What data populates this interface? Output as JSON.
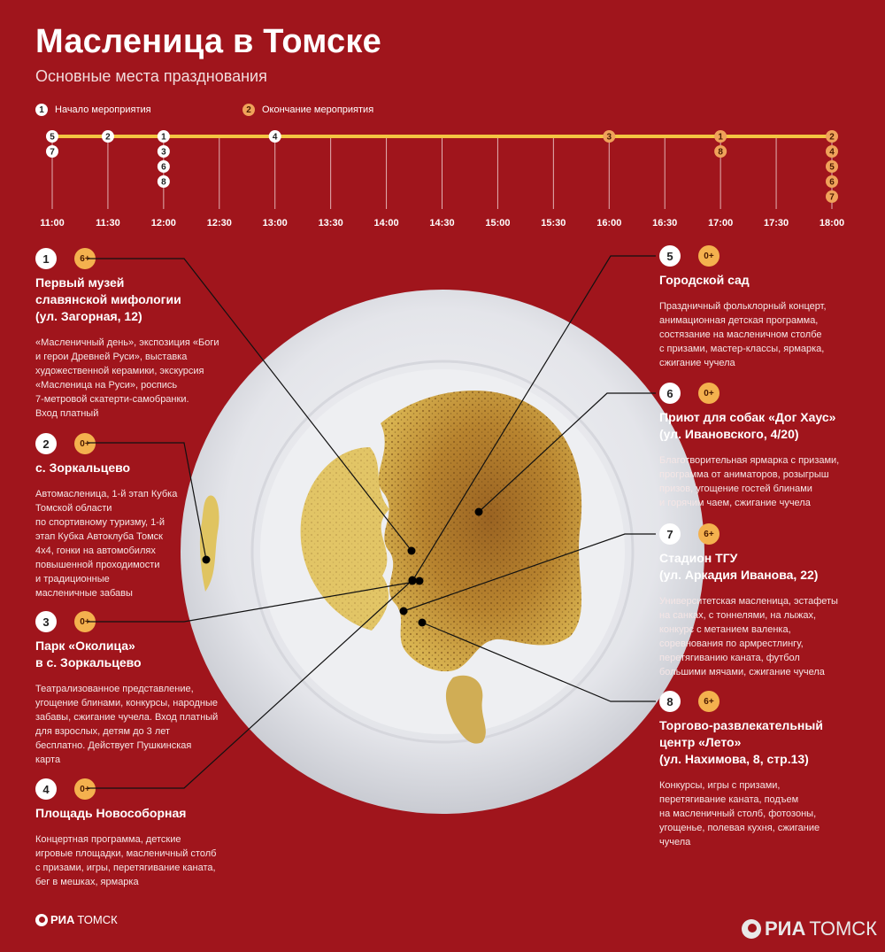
{
  "header": {
    "title": "Масленица в Томске",
    "subtitle": "Основные места празднования"
  },
  "legend": {
    "start": {
      "number": "1",
      "label": "Начало мероприятия"
    },
    "end": {
      "number": "2",
      "label": "Окончание мероприятия"
    }
  },
  "timeline": {
    "ticks": [
      "11:00",
      "11:30",
      "12:00",
      "12:30",
      "13:00",
      "13:30",
      "14:00",
      "14:30",
      "15:00",
      "15:30",
      "16:00",
      "16:30",
      "17:00",
      "17:30",
      "18:00"
    ],
    "events": [
      {
        "id": 1,
        "start": "12:00",
        "end": "17:00"
      },
      {
        "id": 2,
        "start": "11:30",
        "end": "18:00"
      },
      {
        "id": 3,
        "start": "12:00",
        "end": "16:00"
      },
      {
        "id": 4,
        "start": "13:00",
        "end": "18:00"
      },
      {
        "id": 5,
        "start": "11:00",
        "end": "18:00"
      },
      {
        "id": 6,
        "start": "12:00",
        "end": "18:00"
      },
      {
        "id": 7,
        "start": "11:00",
        "end": "18:00"
      },
      {
        "id": 8,
        "start": "12:00",
        "end": "17:00"
      }
    ]
  },
  "venues": [
    {
      "number": "1",
      "age": "6+",
      "name": "Первый музей\nславянской мифологии\n(ул. Загорная, 12)",
      "description": "«Масленичный день», экспозиция «Боги\nи герои Древней Руси», выставка\nхудожественной керамики, экскурсия\n«Масленица на Руси», роспись\n7-метровой скатерти-самобранки.\nВход платный"
    },
    {
      "number": "2",
      "age": "0+",
      "name": "с. Зоркальцево",
      "description": "Автомасленица, 1-й этап Кубка\nТомской области\nпо спортивному туризму, 1-й\nэтап Кубка Автоклуба Томск\n4х4, гонки на автомобилях\nповышенной проходимости\nи традиционные\nмасленичные забавы"
    },
    {
      "number": "3",
      "age": "0+",
      "name": "Парк «Околица»\nв с. Зоркальцево",
      "description": "Театрализованное представление,\nугощение блинами, конкурсы, народные\nзабавы, сжигание чучела. Вход платный\nдля взрослых, детям до 3 лет\nбесплатно. Действует Пушкинская\nкарта"
    },
    {
      "number": "4",
      "age": "0+",
      "name": "Площадь Новособорная",
      "description": "Концертная программа, детские\nигровые площадки, масленичный столб\nс призами, игры, перетягивание каната,\nбег в мешках, ярмарка"
    },
    {
      "number": "5",
      "age": "0+",
      "name": "Городской сад",
      "description": "Праздничный фольклорный концерт,\nанимационная детская программа,\nсостязание на масленичном столбе\nс призами, мастер-классы, ярмарка,\nсжигание чучела"
    },
    {
      "number": "6",
      "age": "0+",
      "name": "Приют для собак «Дог Хаус»\n(ул. Ивановского, 4/20)",
      "description": "Благотворительная ярмарка с призами,\nпрограмма от аниматоров, розыгрыш\nпризов, угощение гостей блинами\nи горячим чаем, сжигание чучела"
    },
    {
      "number": "7",
      "age": "6+",
      "name": "Стадион ТГУ\n(ул. Аркадия Иванова, 22)",
      "description": "Университетская масленица, эстафеты\nна санках, с тоннелями, на лыжах,\nконкурс с метанием валенка,\nсоревнования по армрестлингу,\nперетягиванию каната, футбол\nбольшими мячами, сжигание чучела"
    },
    {
      "number": "8",
      "age": "6+",
      "name": "Торгово-развлекательный\nцентр «Лето»\n(ул. Нахимова, 8, стр.13)",
      "description": "Конкурсы, игры с призами,\nперетягивание каната, подъем\nна масленичный столб, фотозоны,\nугощенье, полевая кухня, сжигание\nчучела"
    }
  ],
  "branding": {
    "small_logo_bold": "РИА",
    "small_logo_light": "ТОМСК",
    "big_logo_bold": "РИА",
    "big_logo_light": "ТОМСК"
  },
  "colors": {
    "background": "#a0151c",
    "timeline_bar": "#f4c542",
    "start_marker": "#ffffff",
    "end_marker": "#f0a25a",
    "age_badge": "#f4b14e"
  }
}
